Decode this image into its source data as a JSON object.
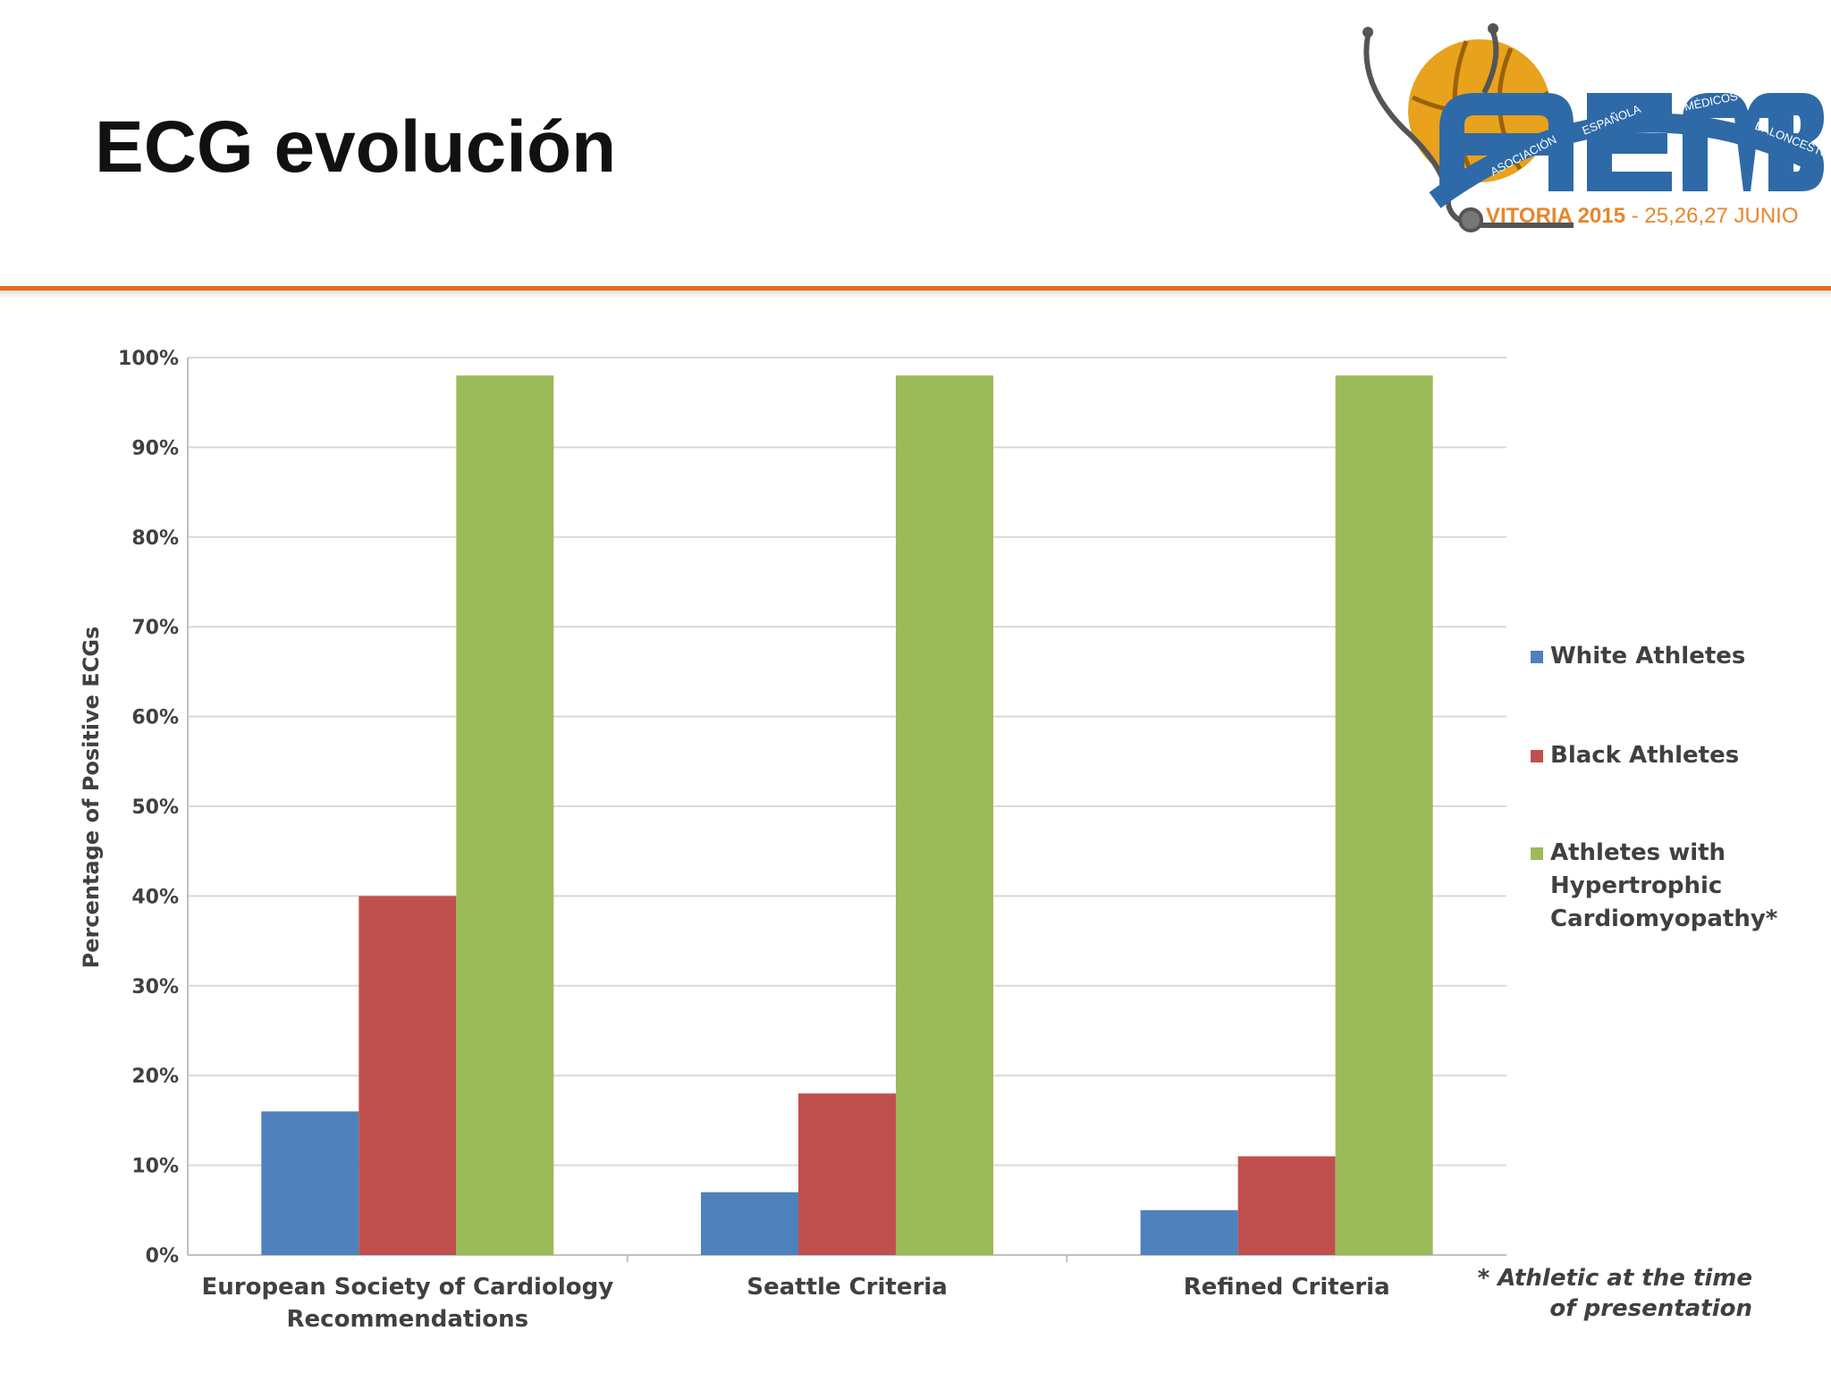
{
  "slide": {
    "title": "ECG evolución"
  },
  "logo": {
    "letters": "AEMB",
    "arc_words": [
      "ASOCIACIÓN",
      "ESPAÑOLA",
      "MÉDICOS",
      "BALONCESTO"
    ],
    "event_place_year": "VITORIA 2015",
    "event_dates": " - 25,26,27 JUNIO",
    "colors": {
      "orange": "#e8862a",
      "blue": "#2e6aa8"
    }
  },
  "chart_data": {
    "type": "bar",
    "categories": [
      [
        "European Society of Cardiology",
        "Recommendations"
      ],
      [
        "Seattle Criteria"
      ],
      [
        "Refined Criteria"
      ]
    ],
    "series": [
      {
        "name": "White Athletes",
        "values": [
          16,
          7,
          5
        ],
        "color": "#4f81bd"
      },
      {
        "name": "Black Athletes",
        "values": [
          40,
          18,
          11
        ],
        "color": "#c0504d"
      },
      {
        "name_lines": [
          "Athletes with",
          "Hypertrophic",
          "Cardiomyopathy*"
        ],
        "values": [
          98,
          98,
          98
        ],
        "color": "#9bbb59"
      }
    ],
    "ylabel": "Percentage of Positive ECGs",
    "ylim": [
      0,
      100
    ],
    "yticks": [
      "0%",
      "10%",
      "20%",
      "30%",
      "40%",
      "50%",
      "60%",
      "70%",
      "80%",
      "90%",
      "100%"
    ],
    "grid": true,
    "legend_position": "right",
    "footnote": [
      "* Athletic at the time",
      "of presentation"
    ]
  }
}
